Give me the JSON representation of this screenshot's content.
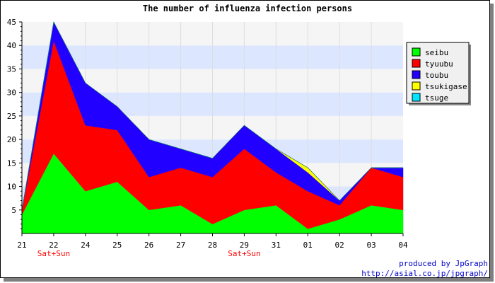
{
  "chart_data": {
    "type": "area",
    "stacked": true,
    "title": "The number of influenza infection persons",
    "xlabel": "",
    "ylabel": "",
    "categories": [
      "21",
      "22",
      "24",
      "25",
      "26",
      "27",
      "28",
      "29",
      "31",
      "01",
      "02",
      "03",
      "04"
    ],
    "sub_labels": [
      "",
      "Sat+Sun",
      "",
      "",
      "",
      "",
      "",
      "Sat+Sun",
      "",
      "",
      "",
      "",
      ""
    ],
    "ylim": [
      0,
      45
    ],
    "yticks": [
      5,
      10,
      15,
      20,
      25,
      30,
      35,
      40,
      45
    ],
    "legend_position": "right",
    "series": [
      {
        "name": "seibu",
        "color": "#00ff00",
        "values": [
          4,
          17,
          9,
          11,
          5,
          6,
          2,
          5,
          6,
          1,
          3,
          6,
          5
        ]
      },
      {
        "name": "tyuubu",
        "color": "#ff0000",
        "values": [
          1,
          24,
          14,
          11,
          7,
          8,
          10,
          13,
          7,
          8,
          3,
          8,
          7
        ]
      },
      {
        "name": "toubu",
        "color": "#2200ff",
        "values": [
          0,
          4,
          9,
          5,
          8,
          4,
          4,
          5,
          5,
          4,
          1,
          0,
          2
        ]
      },
      {
        "name": "tsukigase",
        "color": "#ffff00",
        "values": [
          0,
          0,
          0,
          0,
          0,
          0,
          0,
          0,
          0,
          1,
          0,
          0,
          0
        ]
      },
      {
        "name": "tsuge",
        "color": "#00e5ff",
        "values": [
          0,
          0,
          0,
          0,
          0,
          0,
          0,
          0,
          0,
          0,
          0,
          0,
          0
        ]
      }
    ],
    "grid": true,
    "band_colors": [
      "#dde6ff",
      "#f5f5f5"
    ]
  },
  "credit": {
    "line1": "produced by JpGraph",
    "line2": "http://asial.co.jp/jpgraph/"
  }
}
